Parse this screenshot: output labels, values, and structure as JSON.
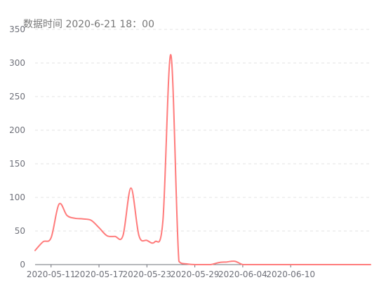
{
  "chart_data": {
    "type": "line",
    "subtitle": "数据时间 2020-6-21 18：00",
    "x_tick_labels": [
      "2020-05-11",
      "2020-05-17",
      "2020-05-23",
      "2020-05-29",
      "2020-06-04",
      "2020-06-10"
    ],
    "y_tick_labels": [
      "0",
      "50",
      "100",
      "150",
      "200",
      "250",
      "300",
      "350"
    ],
    "ylim": [
      0,
      350
    ],
    "grid": true,
    "x": [
      "2020-05-09",
      "2020-05-10",
      "2020-05-11",
      "2020-05-12",
      "2020-05-13",
      "2020-05-14",
      "2020-05-15",
      "2020-05-16",
      "2020-05-17",
      "2020-05-18",
      "2020-05-19",
      "2020-05-20",
      "2020-05-21",
      "2020-05-22",
      "2020-05-23",
      "2020-05-24",
      "2020-05-25",
      "2020-05-26",
      "2020-05-27",
      "2020-05-28",
      "2020-05-29",
      "2020-05-30",
      "2020-05-31",
      "2020-06-01",
      "2020-06-02",
      "2020-06-03",
      "2020-06-04",
      "2020-06-05",
      "2020-06-06",
      "2020-06-07",
      "2020-06-08",
      "2020-06-09",
      "2020-06-10",
      "2020-06-11",
      "2020-06-12",
      "2020-06-13",
      "2020-06-14",
      "2020-06-15",
      "2020-06-16",
      "2020-06-17",
      "2020-06-18",
      "2020-06-19",
      "2020-06-20"
    ],
    "series": [
      {
        "color": "#ff7b7b",
        "values": [
          21,
          34,
          40,
          90,
          73,
          69,
          68,
          66,
          55,
          43,
          42,
          43,
          114,
          43,
          36,
          34,
          65,
          312,
          5,
          1,
          0,
          0,
          0,
          3,
          4,
          5,
          0,
          0,
          0,
          0,
          0,
          0,
          0,
          0,
          0,
          0,
          0,
          0,
          0,
          0,
          0,
          0,
          0
        ]
      }
    ]
  }
}
